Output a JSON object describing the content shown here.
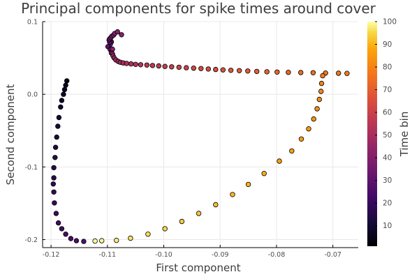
{
  "chart_data": {
    "type": "scatter",
    "title": "Principal components for spike times around cover",
    "xlabel": "First component",
    "ylabel": "Second component",
    "colorbar_label": "Time bin",
    "xlim": [
      -0.1215,
      -0.0655
    ],
    "ylim": [
      -0.211,
      0.1
    ],
    "xticks": [
      {
        "value": -0.12,
        "label": "-0.12"
      },
      {
        "value": -0.11,
        "label": "-0.11"
      },
      {
        "value": -0.1,
        "label": "-0.10"
      },
      {
        "value": -0.09,
        "label": "-0.09"
      },
      {
        "value": -0.08,
        "label": "-0.08"
      },
      {
        "value": -0.07,
        "label": "-0.07"
      }
    ],
    "yticks": [
      {
        "value": 0.1,
        "label": "0.1"
      },
      {
        "value": 0.0,
        "label": "0.0"
      },
      {
        "value": -0.1,
        "label": "-0.1"
      },
      {
        "value": -0.2,
        "label": "-0.2"
      }
    ],
    "colorbar": {
      "min": 1,
      "max": 100,
      "ticks": [
        {
          "value": 10,
          "label": "10"
        },
        {
          "value": 20,
          "label": "20"
        },
        {
          "value": 30,
          "label": "30"
        },
        {
          "value": 40,
          "label": "40"
        },
        {
          "value": 50,
          "label": "50"
        },
        {
          "value": 60,
          "label": "60"
        },
        {
          "value": 70,
          "label": "70"
        },
        {
          "value": 80,
          "label": "80"
        },
        {
          "value": 90,
          "label": "90"
        },
        {
          "value": 100,
          "label": "100"
        }
      ],
      "colormap": "inferno"
    },
    "grid": true,
    "x": [
      -0.1172,
      -0.1174,
      -0.1176,
      -0.1178,
      -0.1181,
      -0.1183,
      -0.1186,
      -0.1188,
      -0.119,
      -0.1192,
      -0.1193,
      -0.1195,
      -0.1195,
      -0.1196,
      -0.1195,
      -0.1194,
      -0.1191,
      -0.1187,
      -0.1181,
      -0.1174,
      -0.1165,
      -0.1155,
      -0.1142,
      -0.1093,
      -0.1095,
      -0.1099,
      -0.1095,
      -0.1093,
      -0.1096,
      -0.1097,
      -0.1096,
      -0.1094,
      -0.1092,
      -0.1089,
      -0.1087,
      -0.1082,
      -0.1075,
      -0.1091,
      -0.1093,
      -0.1091,
      -0.109,
      -0.1088,
      -0.1085,
      -0.1081,
      -0.1077,
      -0.1072,
      -0.1066,
      -0.1058,
      -0.105,
      -0.1041,
      -0.103,
      -0.102,
      -0.1009,
      -0.0998,
      -0.0986,
      -0.0973,
      -0.096,
      -0.0947,
      -0.0934,
      -0.0921,
      -0.0908,
      -0.0895,
      -0.0881,
      -0.0866,
      -0.0851,
      -0.0835,
      -0.0817,
      -0.0799,
      -0.0779,
      -0.0757,
      -0.0735,
      -0.0713,
      -0.069,
      -0.0675,
      -0.0718,
      -0.072,
      -0.0721,
      -0.0724,
      -0.0728,
      -0.0734,
      -0.0743,
      -0.0756,
      -0.0773,
      -0.0795,
      -0.0822,
      -0.085,
      -0.0878,
      -0.0908,
      -0.0938,
      -0.0968,
      -0.0998,
      -0.1028,
      -0.1059,
      -0.1084,
      -0.111,
      -0.1122
    ],
    "y": [
      0.0185,
      0.0125,
      0.0065,
      0.0,
      -0.0085,
      -0.0175,
      -0.032,
      -0.044,
      -0.059,
      -0.073,
      -0.087,
      -0.101,
      -0.115,
      -0.1235,
      -0.1345,
      -0.1495,
      -0.164,
      -0.177,
      -0.185,
      -0.1925,
      -0.1985,
      -0.2015,
      -0.2025,
      0.0722,
      0.0685,
      0.0655,
      0.0616,
      0.0582,
      0.072,
      0.0746,
      0.0762,
      0.078,
      0.08,
      0.0816,
      0.0838,
      0.086,
      0.082,
      0.062,
      0.0568,
      0.0555,
      0.0528,
      0.05,
      0.0473,
      0.0453,
      0.044,
      0.0432,
      0.0425,
      0.0418,
      0.0412,
      0.0407,
      0.0402,
      0.0396,
      0.039,
      0.0384,
      0.0378,
      0.0372,
      0.0366,
      0.036,
      0.0354,
      0.0348,
      0.0342,
      0.0336,
      0.033,
      0.0325,
      0.032,
      0.0315,
      0.031,
      0.0306,
      0.0302,
      0.0299,
      0.0296,
      0.0293,
      0.029,
      0.0288,
      0.0255,
      0.015,
      0.004,
      -0.007,
      -0.02,
      -0.034,
      -0.0475,
      -0.0615,
      -0.078,
      -0.092,
      -0.109,
      -0.124,
      -0.138,
      -0.152,
      -0.164,
      -0.175,
      -0.185,
      -0.1925,
      -0.198,
      -0.201,
      -0.2015,
      -0.202
    ],
    "time_bin": [
      5,
      6,
      7,
      8,
      9,
      10,
      11,
      12,
      13,
      14,
      15,
      16,
      17,
      18,
      19,
      20,
      21,
      22,
      23,
      24,
      25,
      26,
      27,
      28,
      29,
      30,
      31,
      32,
      33,
      34,
      35,
      36,
      37,
      38,
      39,
      40,
      41,
      42,
      43,
      44,
      45,
      46,
      47,
      48,
      49,
      50,
      51,
      52,
      53,
      54,
      55,
      56,
      57,
      58,
      59,
      60,
      61,
      62,
      63,
      64,
      65,
      66,
      67,
      68,
      69,
      70,
      71,
      72,
      73,
      74,
      75,
      76,
      77,
      78,
      79,
      80,
      81,
      82,
      83,
      84,
      85,
      86,
      87,
      88,
      89,
      90,
      91,
      92,
      93,
      94,
      95,
      96,
      97,
      98,
      99,
      100
    ]
  }
}
